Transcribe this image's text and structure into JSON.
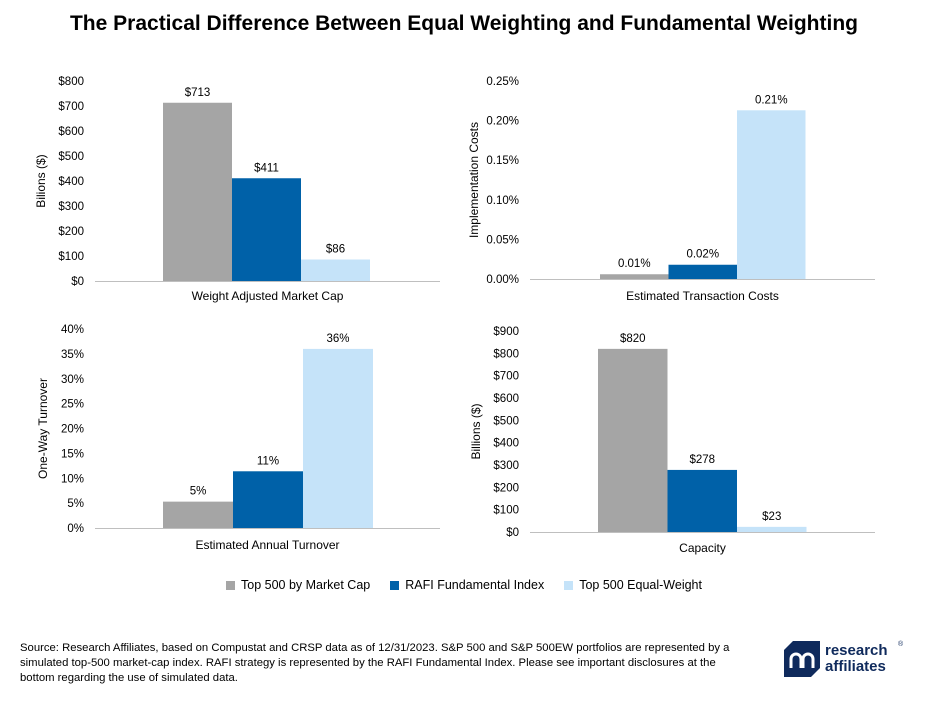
{
  "title": "The Practical Difference Between Equal Weighting and Fundamental Weighting",
  "colors": {
    "Top 500 by Market Cap": "#a5a5a5",
    "RAFI Fundamental Index": "#0061a8",
    "Top 500 Equal-Weight": "#c5e3f9"
  },
  "chart_data": [
    {
      "type": "bar",
      "title": "",
      "categories": [
        "Weight Adjusted Market Cap"
      ],
      "xlabel": "Weight Adjusted Market Cap",
      "ylabel": "Bilions ($)",
      "ylim": [
        0,
        800
      ],
      "yticks": [
        0,
        100,
        200,
        300,
        400,
        500,
        600,
        700,
        800
      ],
      "ytick_labels": [
        "$0",
        "$100",
        "$200",
        "$300",
        "$400",
        "$500",
        "$600",
        "$700",
        "$800"
      ],
      "series": [
        {
          "name": "Top 500 by Market Cap",
          "values": [
            713
          ],
          "labels": [
            "$713"
          ]
        },
        {
          "name": "RAFI Fundamental Index",
          "values": [
            411
          ],
          "labels": [
            "$411"
          ]
        },
        {
          "name": "Top 500 Equal-Weight",
          "values": [
            86
          ],
          "labels": [
            "$86"
          ]
        }
      ]
    },
    {
      "type": "bar",
      "title": "",
      "categories": [
        "Estimated Transaction Costs"
      ],
      "xlabel": "Estimated Transaction Costs",
      "ylabel": "Implementation Costs",
      "ylim": [
        0,
        0.25
      ],
      "yticks": [
        0,
        0.05,
        0.1,
        0.15,
        0.2,
        0.25
      ],
      "ytick_labels": [
        "0.00%",
        "0.05%",
        "0.10%",
        "0.15%",
        "0.20%",
        "0.25%"
      ],
      "series": [
        {
          "name": "Top 500 by Market Cap",
          "values": [
            0.006
          ],
          "labels": [
            "0.01%"
          ]
        },
        {
          "name": "RAFI Fundamental Index",
          "values": [
            0.018
          ],
          "labels": [
            "0.02%"
          ]
        },
        {
          "name": "Top 500 Equal-Weight",
          "values": [
            0.213
          ],
          "labels": [
            "0.21%"
          ]
        }
      ]
    },
    {
      "type": "bar",
      "title": "",
      "categories": [
        "Estimated Annual Turnover"
      ],
      "xlabel": "Estimated Annual Turnover",
      "ylabel": "One-Way Turnover",
      "ylim": [
        0,
        40
      ],
      "yticks": [
        0,
        5,
        10,
        15,
        20,
        25,
        30,
        35,
        40
      ],
      "ytick_labels": [
        "0%",
        "5%",
        "10%",
        "15%",
        "20%",
        "25%",
        "30%",
        "35%",
        "40%"
      ],
      "series": [
        {
          "name": "Top 500 by Market Cap",
          "values": [
            5.3
          ],
          "labels": [
            "5%"
          ]
        },
        {
          "name": "RAFI Fundamental Index",
          "values": [
            11.4
          ],
          "labels": [
            "11%"
          ]
        },
        {
          "name": "Top 500 Equal-Weight",
          "values": [
            36
          ],
          "labels": [
            "36%"
          ]
        }
      ]
    },
    {
      "type": "bar",
      "title": "",
      "categories": [
        "Capacity"
      ],
      "xlabel": "Capacity",
      "ylabel": "Billions ($)",
      "ylim": [
        0,
        900
      ],
      "yticks": [
        0,
        100,
        200,
        300,
        400,
        500,
        600,
        700,
        800,
        900
      ],
      "ytick_labels": [
        "$0",
        "$100",
        "$200",
        "$300",
        "$400",
        "$500",
        "$600",
        "$700",
        "$800",
        "$900"
      ],
      "series": [
        {
          "name": "Top 500 by Market Cap",
          "values": [
            820
          ],
          "labels": [
            "$820"
          ]
        },
        {
          "name": "RAFI Fundamental Index",
          "values": [
            278
          ],
          "labels": [
            "$278"
          ]
        },
        {
          "name": "Top 500 Equal-Weight",
          "values": [
            23
          ],
          "labels": [
            "$23"
          ]
        }
      ]
    }
  ],
  "legend": {
    "position": "bottom-center",
    "items": [
      {
        "label": "Top 500 by Market Cap"
      },
      {
        "label": "RAFI Fundamental Index"
      },
      {
        "label": "Top 500 Equal-Weight"
      }
    ]
  },
  "source": "Source: Research Affiliates, based on Compustat and CRSP data as of 12/31/2023. S&P 500 and S&P 500EW portfolios are represented by a simulated top-500 market-cap index. RAFI strategy is represented by the RAFI Fundamental Index. Please see important disclosures at the bottom regarding the use of simulated data.",
  "logo": {
    "line1": "research",
    "line2": "affiliates",
    "reg": "®"
  }
}
